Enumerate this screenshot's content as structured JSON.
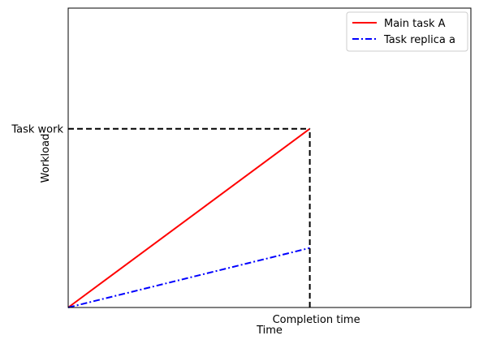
{
  "chart_data": {
    "type": "line",
    "title": "",
    "xlabel": "Time",
    "ylabel": "Workload",
    "xlim": [
      0,
      1
    ],
    "ylim": [
      0,
      1.675
    ],
    "x_ticks": [
      {
        "value": 0.6,
        "label": "Completion time"
      }
    ],
    "y_ticks": [
      {
        "value": 1.0,
        "label": "Task work"
      }
    ],
    "series": [
      {
        "name": "Main task A",
        "x": [
          0,
          0.6
        ],
        "y": [
          0,
          1.0
        ],
        "color": "#ff0000",
        "linestyle": "solid"
      },
      {
        "name": "Task replica a",
        "x": [
          0,
          0.6
        ],
        "y": [
          0,
          0.333
        ],
        "color": "#0000ff",
        "linestyle": "dashdot"
      }
    ],
    "reference_lines": [
      {
        "orientation": "horizontal",
        "value": 1.0,
        "from": 0,
        "to": 0.6,
        "color": "#000000",
        "linestyle": "dashed"
      },
      {
        "orientation": "vertical",
        "value": 0.6,
        "from": 0,
        "to": 1.0,
        "color": "#000000",
        "linestyle": "dashed"
      }
    ],
    "grid": false,
    "legend_position": "top-right"
  }
}
